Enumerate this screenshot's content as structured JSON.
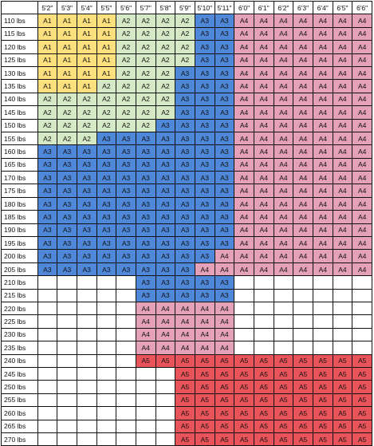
{
  "heights": [
    "5'2\"",
    "5'3\"",
    "5'4\"",
    "5'5\"",
    "5'6\"",
    "5'7\"",
    "5'8\"",
    "5'9\"",
    "5'10\"",
    "5'11\"",
    "6'0\"",
    "6'1\"",
    "6'2\"",
    "6'3\"",
    "6'4\"",
    "6'5\"",
    "6'6\""
  ],
  "colors": {
    "A1": "#fbe07d",
    "A2": "#d6e9c6",
    "A3": "#4f88d9",
    "A4": "#e4a1b8",
    "A5": "#e9545a"
  },
  "rows": [
    {
      "weight": "110 lbs",
      "sizes": [
        "A1",
        "A1",
        "A1",
        "A1",
        "A2",
        "A2",
        "A2",
        "A2",
        "A3",
        "A3",
        "A4",
        "A4",
        "A4",
        "A4",
        "A4",
        "A4",
        "A4"
      ]
    },
    {
      "weight": "115 lbs",
      "sizes": [
        "A1",
        "A1",
        "A1",
        "A1",
        "A2",
        "A2",
        "A2",
        "A2",
        "A3",
        "A3",
        "A4",
        "A4",
        "A4",
        "A4",
        "A4",
        "A4",
        "A4"
      ]
    },
    {
      "weight": "120 lbs",
      "sizes": [
        "A1",
        "A1",
        "A1",
        "A1",
        "A2",
        "A2",
        "A2",
        "A2",
        "A3",
        "A3",
        "A4",
        "A4",
        "A4",
        "A4",
        "A4",
        "A4",
        "A4"
      ]
    },
    {
      "weight": "125 lbs",
      "sizes": [
        "A1",
        "A1",
        "A1",
        "A1",
        "A2",
        "A2",
        "A2",
        "A2",
        "A3",
        "A3",
        "A4",
        "A4",
        "A4",
        "A4",
        "A4",
        "A4",
        "A4"
      ]
    },
    {
      "weight": "130 lbs",
      "sizes": [
        "A1",
        "A1",
        "A1",
        "A1",
        "A2",
        "A2",
        "A2",
        "A3",
        "A3",
        "A3",
        "A4",
        "A4",
        "A4",
        "A4",
        "A4",
        "A4",
        "A4"
      ]
    },
    {
      "weight": "135 lbs",
      "sizes": [
        "A1",
        "A1",
        "A1",
        "A2",
        "A2",
        "A2",
        "A2",
        "A3",
        "A3",
        "A3",
        "A4",
        "A4",
        "A4",
        "A4",
        "A4",
        "A4",
        "A4"
      ]
    },
    {
      "weight": "140 lbs",
      "sizes": [
        "A2",
        "A2",
        "A2",
        "A2",
        "A2",
        "A2",
        "A2",
        "A3",
        "A3",
        "A3",
        "A4",
        "A4",
        "A4",
        "A4",
        "A4",
        "A4",
        "A4"
      ]
    },
    {
      "weight": "145 lbs",
      "sizes": [
        "A2",
        "A2",
        "A2",
        "A2",
        "A2",
        "A2",
        "A2",
        "A3",
        "A3",
        "A3",
        "A4",
        "A4",
        "A4",
        "A4",
        "A4",
        "A4",
        "A4"
      ]
    },
    {
      "weight": "150 lbs",
      "sizes": [
        "A2",
        "A2",
        "A2",
        "A2",
        "A2",
        "A2",
        "A3",
        "A3",
        "A3",
        "A3",
        "A4",
        "A4",
        "A4",
        "A4",
        "A4",
        "A4",
        "A4"
      ]
    },
    {
      "weight": "155 lbs",
      "sizes": [
        "A2",
        "A2",
        "A2",
        "A3",
        "A3",
        "A3",
        "A3",
        "A3",
        "A3",
        "A3",
        "A4",
        "A4",
        "A4",
        "A4",
        "A4",
        "A4",
        "A4"
      ]
    },
    {
      "weight": "160 lbs",
      "sizes": [
        "A3",
        "A3",
        "A3",
        "A3",
        "A3",
        "A3",
        "A3",
        "A3",
        "A3",
        "A3",
        "A4",
        "A4",
        "A4",
        "A4",
        "A4",
        "A4",
        "A4"
      ]
    },
    {
      "weight": "165 lbs",
      "sizes": [
        "A3",
        "A3",
        "A3",
        "A3",
        "A3",
        "A3",
        "A3",
        "A3",
        "A3",
        "A3",
        "A4",
        "A4",
        "A4",
        "A4",
        "A4",
        "A4",
        "A4"
      ]
    },
    {
      "weight": "170 lbs",
      "sizes": [
        "A3",
        "A3",
        "A3",
        "A3",
        "A3",
        "A3",
        "A3",
        "A3",
        "A3",
        "A3",
        "A4",
        "A4",
        "A4",
        "A4",
        "A4",
        "A4",
        "A4"
      ]
    },
    {
      "weight": "175 lbs",
      "sizes": [
        "A3",
        "A3",
        "A3",
        "A3",
        "A3",
        "A3",
        "A3",
        "A3",
        "A3",
        "A3",
        "A4",
        "A4",
        "A4",
        "A4",
        "A4",
        "A4",
        "A4"
      ]
    },
    {
      "weight": "180 lbs",
      "sizes": [
        "A3",
        "A3",
        "A3",
        "A3",
        "A3",
        "A3",
        "A3",
        "A3",
        "A3",
        "A3",
        "A4",
        "A4",
        "A4",
        "A4",
        "A4",
        "A4",
        "A4"
      ]
    },
    {
      "weight": "185 lbs",
      "sizes": [
        "A3",
        "A3",
        "A3",
        "A3",
        "A3",
        "A3",
        "A3",
        "A3",
        "A3",
        "A3",
        "A4",
        "A4",
        "A4",
        "A4",
        "A4",
        "A4",
        "A4"
      ]
    },
    {
      "weight": "190 lbs",
      "sizes": [
        "A3",
        "A3",
        "A3",
        "A3",
        "A3",
        "A3",
        "A3",
        "A3",
        "A3",
        "A3",
        "A4",
        "A4",
        "A4",
        "A4",
        "A4",
        "A4",
        "A4"
      ]
    },
    {
      "weight": "195 lbs",
      "sizes": [
        "A3",
        "A3",
        "A3",
        "A3",
        "A3",
        "A3",
        "A3",
        "A3",
        "A3",
        "A3",
        "A4",
        "A4",
        "A4",
        "A4",
        "A4",
        "A4",
        "A4"
      ]
    },
    {
      "weight": "200 lbs",
      "sizes": [
        "A3",
        "A3",
        "A3",
        "A3",
        "A3",
        "A3",
        "A3",
        "A3",
        "A3",
        "A4",
        "A4",
        "A4",
        "A4",
        "A4",
        "A4",
        "A4",
        "A4"
      ]
    },
    {
      "weight": "205 lbs",
      "sizes": [
        "A3",
        "A3",
        "A3",
        "A3",
        "A3",
        "A3",
        "A3",
        "A3",
        "A4",
        "A4",
        "A4",
        "A4",
        "A4",
        "A4",
        "A4",
        "A4",
        "A4"
      ]
    },
    {
      "weight": "210 lbs",
      "sizes": [
        "",
        "",
        "",
        "",
        "",
        "A3",
        "A3",
        "A3",
        "A3",
        "A3",
        "",
        "",
        "",
        "",
        "",
        "",
        ""
      ]
    },
    {
      "weight": "215 lbs",
      "sizes": [
        "",
        "",
        "",
        "",
        "",
        "A3",
        "A3",
        "A3",
        "A3",
        "A3",
        "",
        "",
        "",
        "",
        "",
        "",
        ""
      ]
    },
    {
      "weight": "220 lbs",
      "sizes": [
        "",
        "",
        "",
        "",
        "",
        "A4",
        "A4",
        "A4",
        "A4",
        "A4",
        "",
        "",
        "",
        "",
        "",
        "",
        ""
      ]
    },
    {
      "weight": "225 lbs",
      "sizes": [
        "",
        "",
        "",
        "",
        "",
        "A4",
        "A4",
        "A4",
        "A4",
        "A4",
        "",
        "",
        "",
        "",
        "",
        "",
        ""
      ]
    },
    {
      "weight": "230 lbs",
      "sizes": [
        "",
        "",
        "",
        "",
        "",
        "A4",
        "A4",
        "A4",
        "A4",
        "A4",
        "",
        "",
        "",
        "",
        "",
        "",
        ""
      ]
    },
    {
      "weight": "235 lbs",
      "sizes": [
        "",
        "",
        "",
        "",
        "",
        "A4",
        "A4",
        "A4",
        "A4",
        "A4",
        "",
        "",
        "",
        "",
        "",
        "",
        ""
      ]
    },
    {
      "weight": "240 lbs",
      "sizes": [
        "",
        "",
        "",
        "",
        "",
        "A5",
        "A5",
        "A5",
        "A5",
        "A5",
        "A5",
        "A5",
        "A5",
        "A5",
        "A5",
        "A5",
        "A5"
      ]
    },
    {
      "weight": "245 lbs",
      "sizes": [
        "",
        "",
        "",
        "",
        "",
        "",
        "",
        "A5",
        "A5",
        "A5",
        "A5",
        "A5",
        "A5",
        "A5",
        "A5",
        "A5",
        "A5"
      ]
    },
    {
      "weight": "250 lbs",
      "sizes": [
        "",
        "",
        "",
        "",
        "",
        "",
        "",
        "A5",
        "A5",
        "A5",
        "A5",
        "A5",
        "A5",
        "A5",
        "A5",
        "A5",
        "A5"
      ]
    },
    {
      "weight": "255 lbs",
      "sizes": [
        "",
        "",
        "",
        "",
        "",
        "",
        "",
        "A5",
        "A5",
        "A5",
        "A5",
        "A5",
        "A5",
        "A5",
        "A5",
        "A5",
        "A5"
      ]
    },
    {
      "weight": "260 lbs",
      "sizes": [
        "",
        "",
        "",
        "",
        "",
        "",
        "",
        "A5",
        "A5",
        "A5",
        "A5",
        "A5",
        "A5",
        "A5",
        "A5",
        "A5",
        "A5"
      ]
    },
    {
      "weight": "265 lbs",
      "sizes": [
        "",
        "",
        "",
        "",
        "",
        "",
        "",
        "A5",
        "A5",
        "A5",
        "A5",
        "A5",
        "A5",
        "A5",
        "A5",
        "A5",
        "A5"
      ]
    },
    {
      "weight": "270 lbs",
      "sizes": [
        "",
        "",
        "",
        "",
        "",
        "",
        "",
        "A5",
        "A5",
        "A5",
        "A5",
        "A5",
        "A5",
        "A5",
        "A5",
        "A5",
        "A5"
      ]
    }
  ]
}
